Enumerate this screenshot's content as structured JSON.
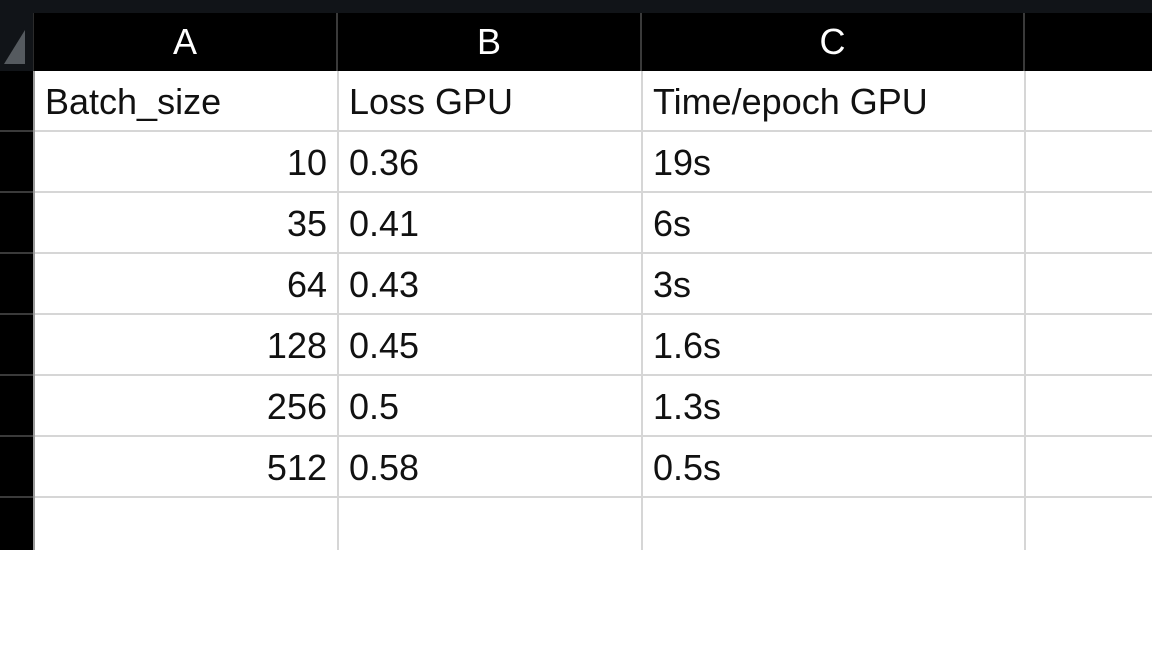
{
  "columns": [
    "A",
    "B",
    "C",
    ""
  ],
  "rows": [
    [
      "Batch_size",
      "Loss GPU",
      "Time/epoch GPU",
      ""
    ],
    [
      "10",
      "0.36",
      "19s",
      ""
    ],
    [
      "35",
      "0.41",
      "6s",
      ""
    ],
    [
      "64",
      "0.43",
      "3s",
      ""
    ],
    [
      "128",
      "0.45",
      "1.6s",
      ""
    ],
    [
      "256",
      "0.5",
      "1.3s",
      ""
    ],
    [
      "512",
      "0.58",
      "0.5s",
      ""
    ],
    [
      "",
      "",
      "",
      ""
    ]
  ],
  "colors": {
    "header_bg": "#000000",
    "header_text": "#ffffff",
    "grid_line": "#d6d6d6",
    "cell_text": "#111111"
  }
}
